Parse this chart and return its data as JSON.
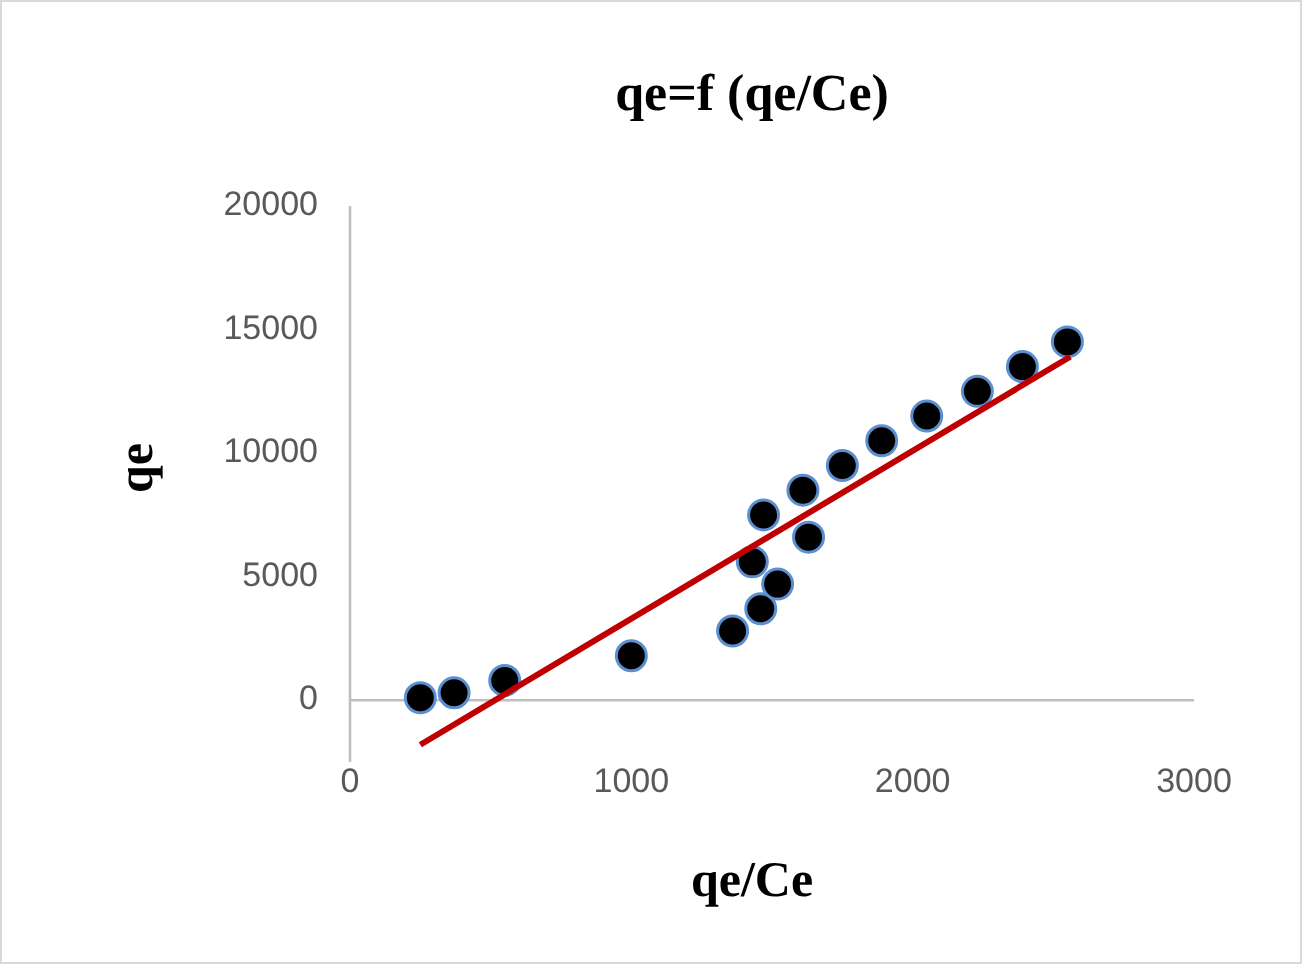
{
  "chart_data": {
    "type": "scatter",
    "title": "qe=f (qe/Ce)",
    "xlabel": "qe/Ce",
    "ylabel": "qe",
    "xlim": [
      0,
      3000
    ],
    "xticks": [
      0,
      1000,
      2000,
      3000
    ],
    "ylim": [
      -2500,
      20000
    ],
    "yticks": [
      0,
      5000,
      10000,
      15000,
      20000
    ],
    "grid": false,
    "marker": "circle",
    "series": [
      {
        "color": "#000000",
        "x": [
          250,
          370,
          550,
          1000,
          1360,
          1430,
          1460,
          1520,
          1470,
          1610,
          1630,
          1750,
          1890,
          2050,
          2230,
          2390,
          2550
        ],
        "values": [
          100,
          300,
          800,
          1800,
          2800,
          5600,
          3700,
          4700,
          7500,
          8500,
          6600,
          9500,
          10500,
          11500,
          12500,
          13500,
          14500
        ]
      },
      {
        "type": "line",
        "color": "#c00000",
        "marker": "none",
        "x": [
          250,
          2560
        ],
        "values": [
          -1800,
          13900
        ]
      }
    ]
  }
}
